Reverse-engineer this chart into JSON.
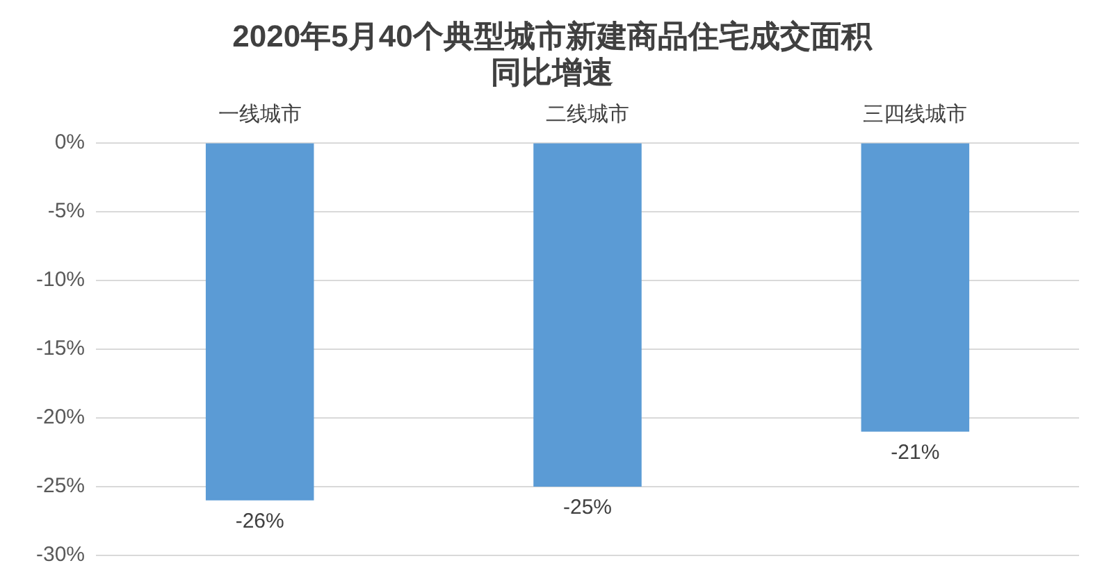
{
  "chart_data": {
    "type": "bar",
    "title": "2020年5月40个典型城市新建商品住宅成交面积同比增速",
    "categories": [
      "一线城市",
      "二线城市",
      "三四线城市"
    ],
    "values": [
      -26,
      -25,
      -21
    ],
    "color": "#5b9bd5",
    "value_labels": [
      "-26%",
      "-25%",
      "-21%"
    ],
    "ylim": [
      -30,
      0
    ],
    "yticks": [
      {
        "value": 0,
        "label": "0%"
      },
      {
        "value": -5,
        "label": "-5%"
      },
      {
        "value": -10,
        "label": "-10%"
      },
      {
        "value": -15,
        "label": "-15%"
      },
      {
        "value": -20,
        "label": "-20%"
      },
      {
        "value": -25,
        "label": "-25%"
      },
      {
        "value": -30,
        "label": "-30%"
      }
    ],
    "grid": "y",
    "legend": false
  }
}
